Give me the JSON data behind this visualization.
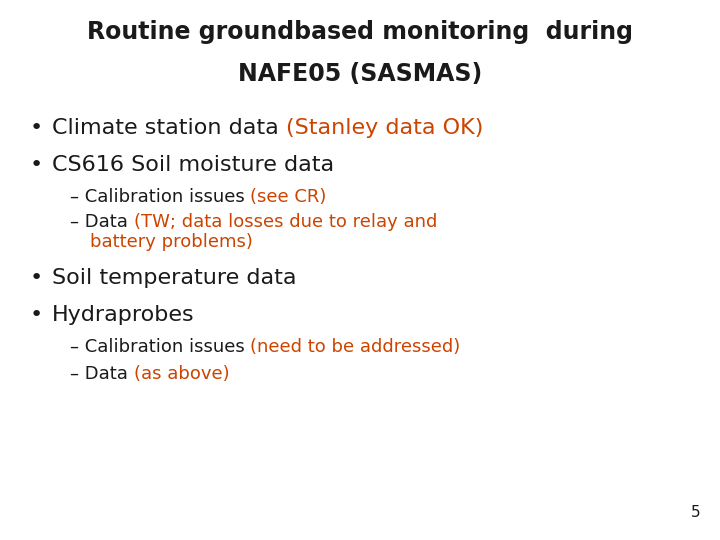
{
  "background_color": "#ffffff",
  "title_line1": "Routine groundbased monitoring  during",
  "title_line2": "NAFE05 (SASMAS)",
  "title_color": "#1a1a1a",
  "orange_color": "#cc4400",
  "black_color": "#1a1a1a",
  "slide_number": "5",
  "title_fontsize": 17,
  "bullet1_fontsize": 16,
  "bullet2_fontsize": 13,
  "parensize": 13,
  "slide_num_fontsize": 11,
  "font_family": "DejaVu Sans"
}
